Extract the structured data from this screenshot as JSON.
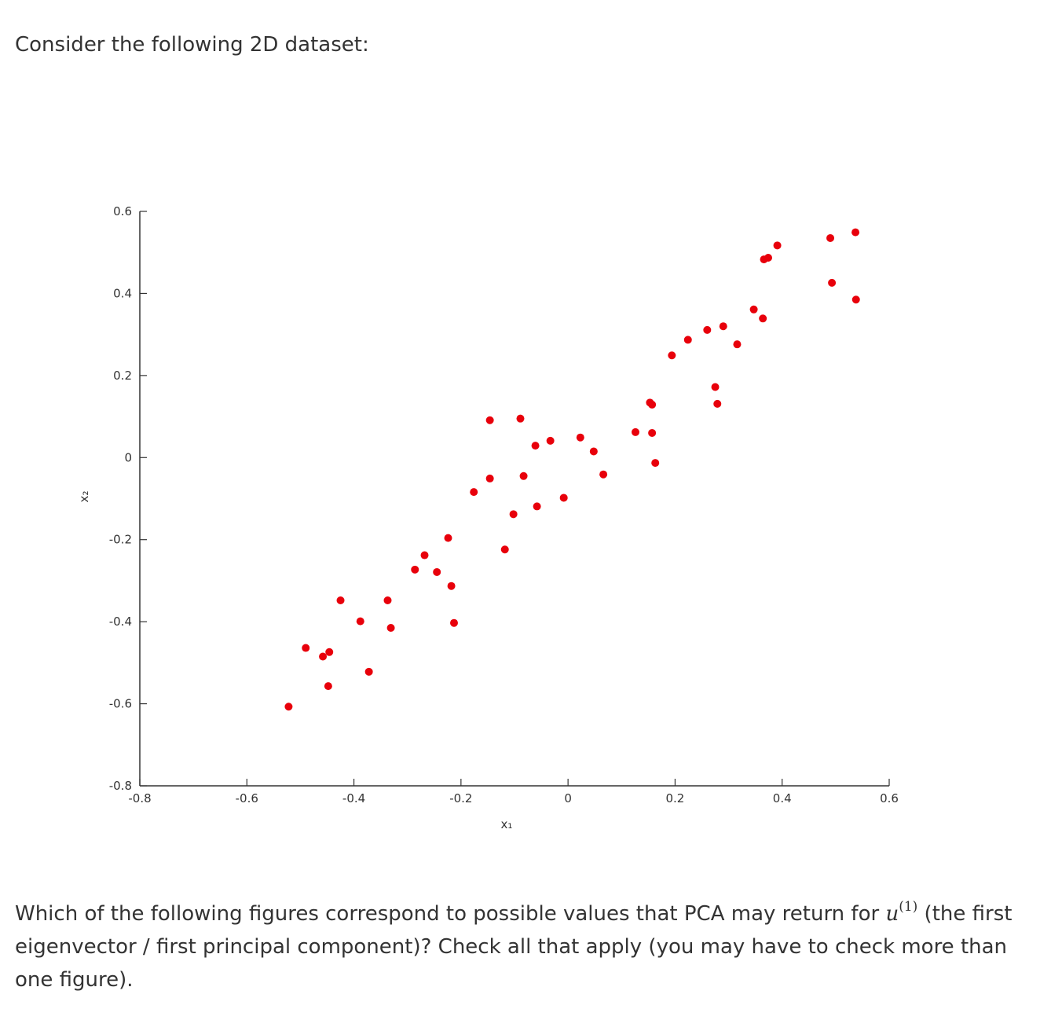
{
  "intro_text": "Consider the following 2D dataset:",
  "question": {
    "before": "Which of the following figures correspond to possible values that PCA may return for ",
    "math_var": "u",
    "math_sup": "(1)",
    "after": " (the first eigenvector / first principal component)? Check all that apply (you may have to check more than one figure)."
  },
  "colors": {
    "points": "#e8000b",
    "axes": "#333333",
    "text": "#333333"
  },
  "chart_data": {
    "type": "scatter",
    "xlabel": "x₁",
    "ylabel": "x₂",
    "xlim": [
      -0.8,
      0.6
    ],
    "ylim": [
      -0.8,
      0.6
    ],
    "xticks": [
      -0.8,
      -0.6,
      -0.4,
      -0.2,
      0,
      0.2,
      0.4,
      0.6
    ],
    "yticks": [
      -0.8,
      -0.6,
      -0.4,
      -0.2,
      0,
      0.2,
      0.4,
      0.6
    ],
    "x_tick_labels": [
      "-0.8",
      "-0.6",
      "-0.4",
      "-0.2",
      "0",
      "0.2",
      "0.4",
      "0.6"
    ],
    "y_tick_labels": [
      "-0.8",
      "-0.6",
      "-0.4",
      "-0.2",
      "0",
      "0.2",
      "0.4",
      "0.6"
    ],
    "grid": false,
    "points": [
      [
        -0.522,
        -0.607
      ],
      [
        -0.49,
        -0.464
      ],
      [
        -0.458,
        -0.485
      ],
      [
        -0.448,
        -0.557
      ],
      [
        -0.446,
        -0.474
      ],
      [
        -0.425,
        -0.348
      ],
      [
        -0.388,
        -0.399
      ],
      [
        -0.372,
        -0.522
      ],
      [
        -0.337,
        -0.348
      ],
      [
        -0.331,
        -0.415
      ],
      [
        -0.286,
        -0.273
      ],
      [
        -0.268,
        -0.238
      ],
      [
        -0.245,
        -0.279
      ],
      [
        -0.224,
        -0.196
      ],
      [
        -0.218,
        -0.313
      ],
      [
        -0.213,
        -0.403
      ],
      [
        -0.176,
        -0.084
      ],
      [
        -0.146,
        0.091
      ],
      [
        -0.146,
        -0.051
      ],
      [
        -0.118,
        -0.224
      ],
      [
        -0.102,
        -0.138
      ],
      [
        -0.089,
        0.095
      ],
      [
        -0.083,
        -0.045
      ],
      [
        -0.061,
        0.029
      ],
      [
        -0.058,
        -0.119
      ],
      [
        -0.033,
        0.041
      ],
      [
        -0.008,
        -0.098
      ],
      [
        0.023,
        0.049
      ],
      [
        0.048,
        0.015
      ],
      [
        0.066,
        -0.041
      ],
      [
        0.126,
        0.062
      ],
      [
        0.153,
        0.134
      ],
      [
        0.157,
        0.129
      ],
      [
        0.157,
        0.06
      ],
      [
        0.163,
        -0.013
      ],
      [
        0.194,
        0.249
      ],
      [
        0.224,
        0.287
      ],
      [
        0.26,
        0.311
      ],
      [
        0.275,
        0.172
      ],
      [
        0.279,
        0.131
      ],
      [
        0.29,
        0.32
      ],
      [
        0.316,
        0.276
      ],
      [
        0.347,
        0.361
      ],
      [
        0.364,
        0.339
      ],
      [
        0.366,
        0.483
      ],
      [
        0.374,
        0.487
      ],
      [
        0.391,
        0.517
      ],
      [
        0.49,
        0.535
      ],
      [
        0.493,
        0.426
      ],
      [
        0.537,
        0.549
      ],
      [
        0.538,
        0.385
      ]
    ]
  }
}
